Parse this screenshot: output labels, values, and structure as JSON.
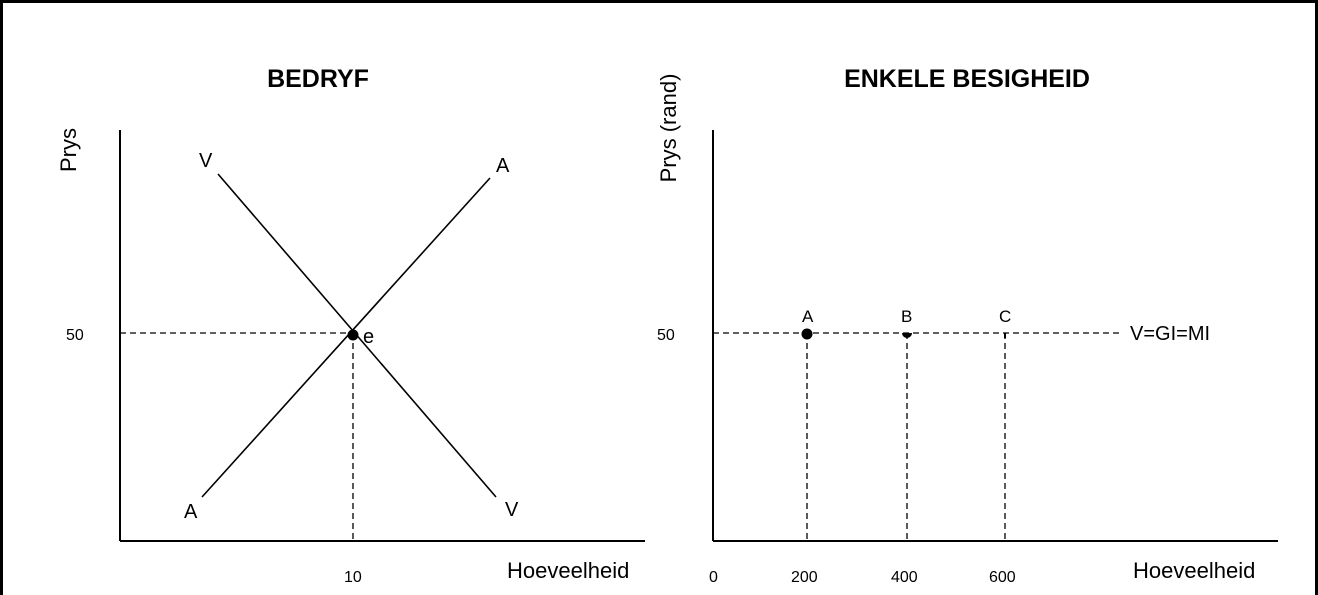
{
  "left_panel": {
    "title": "BEDRYF",
    "y_axis_label": "Prys",
    "x_axis_label": "Hoeveelheid",
    "price_tick": "50",
    "quantity_tick": "10",
    "supply_labels": [
      "A",
      "A"
    ],
    "demand_labels": [
      "V",
      "V"
    ],
    "equilibrium_label": "e"
  },
  "right_panel": {
    "title": "ENKELE BESIGHEID",
    "y_axis_label": "Prys (rand)",
    "x_axis_label": "Hoeveelheid",
    "price_tick": "50",
    "x_ticks": [
      "0",
      "200",
      "400",
      "600"
    ],
    "points": [
      "A",
      "B",
      "C"
    ],
    "line_label": "V=GI=MI"
  }
}
